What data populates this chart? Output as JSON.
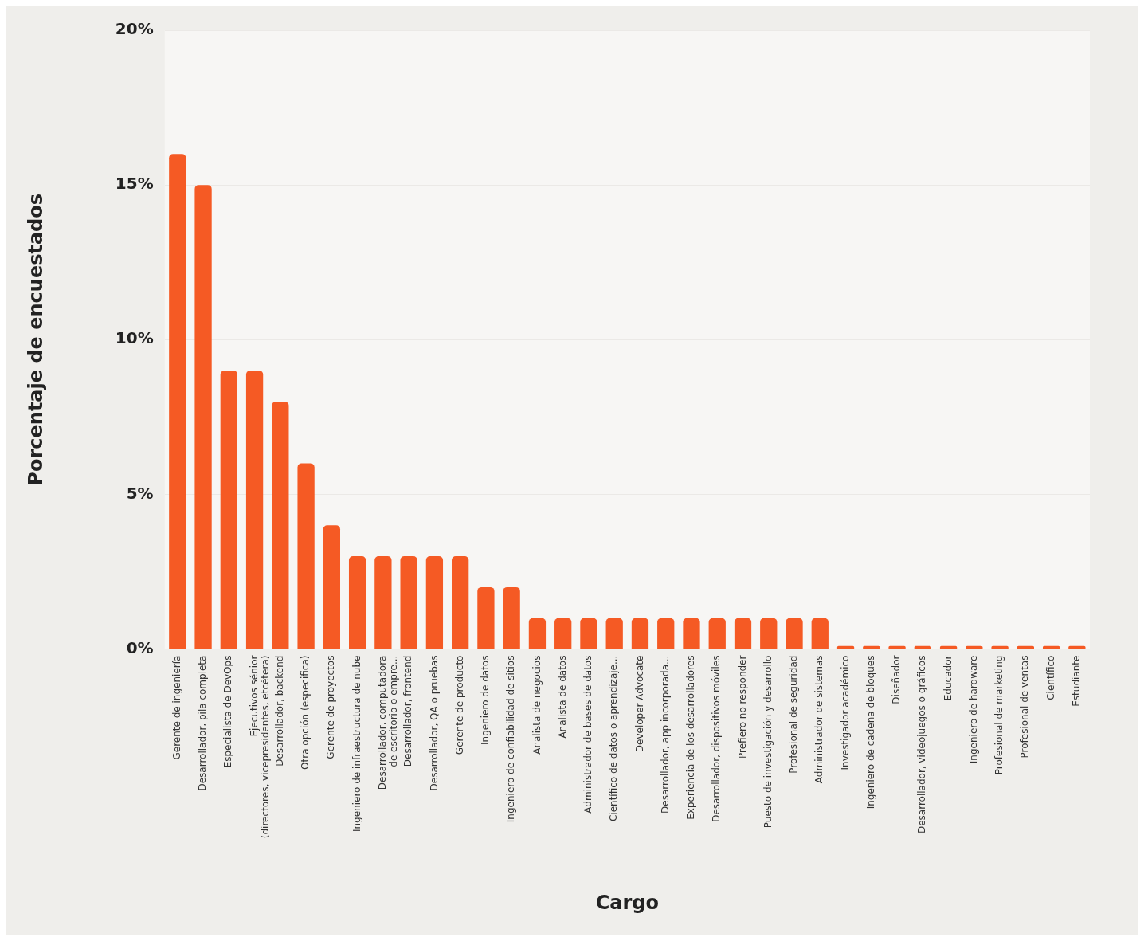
{
  "chart_data": {
    "type": "bar",
    "xlabel": "Cargo",
    "ylabel": "Porcentaje de encuestados",
    "categories": [
      "Gerente de ingeniería",
      "Desarrollador, pila completa",
      "Especialista de DevOps",
      "Ejecutivos sénior\n(directores, vicepresidentes, etcétera)",
      "Desarrollador, backend",
      "Otra opción (especifica)",
      "Gerente de proyectos",
      "Ingeniero de infraestructura de nube",
      "Desarrollador, computadora\nde escritorio o empre...",
      "Desarrollador, frontend",
      "Desarrollador, QA o pruebas",
      "Gerente de producto",
      "Ingeniero de datos",
      "Ingeniero de confiabilidad de sitios",
      "Analista de negocios",
      "Analista de datos",
      "Administrador de bases de datos",
      "Científico de datos o aprendizaje...",
      "Developer Advocate",
      "Desarrollador, app incorporada...",
      "Experiencia de los desarrolladores",
      "Desarrollador, dispositivos móviles",
      "Prefiero no responder",
      "Puesto de investigación y desarrollo",
      "Profesional de seguridad",
      "Administrador de sistemas",
      "Investigador académico",
      "Ingeniero de cadena de bloques",
      "Diseñador",
      "Desarrollador, videojuegos o gráficos",
      "Educador",
      "Ingeniero de hardware",
      "Profesional de marketing",
      "Profesional de ventas",
      "Científico",
      "Estudiante"
    ],
    "values": [
      16,
      15,
      9,
      9,
      8,
      6,
      4,
      3,
      3,
      3,
      3,
      3,
      2,
      2,
      1,
      1,
      1,
      1,
      1,
      1,
      1,
      1,
      1,
      1,
      1,
      1,
      0.1,
      0.1,
      0.1,
      0.1,
      0.1,
      0.1,
      0.1,
      0.1,
      0.1,
      0.1
    ],
    "color": "#f55a24",
    "ylim": [
      0,
      20
    ],
    "yticks": [
      {
        "value": 0,
        "label": "0%"
      },
      {
        "value": 5,
        "label": "5%"
      },
      {
        "value": 10,
        "label": "10%"
      },
      {
        "value": 15,
        "label": "15%"
      },
      {
        "value": 20,
        "label": "20%"
      }
    ],
    "grid": "y",
    "legend": false
  }
}
